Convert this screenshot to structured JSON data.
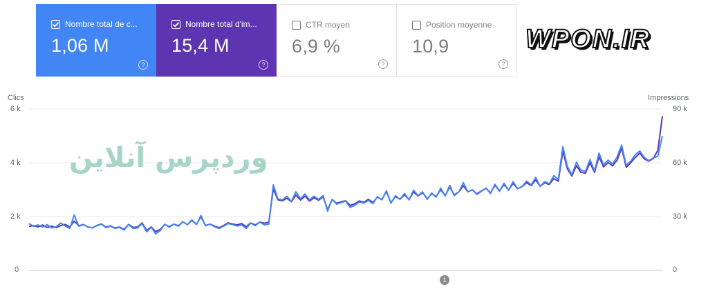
{
  "metrics": [
    {
      "label": "Nombre total de c...",
      "value": "1,06 M",
      "checked": true,
      "color": "#4285f4"
    },
    {
      "label": "Nombre total d'im...",
      "value": "15,4 M",
      "checked": true,
      "color": "#5e35b1"
    },
    {
      "label": "CTR moyen",
      "value": "6,9 %",
      "checked": false
    },
    {
      "label": "Position moyenne",
      "value": "10,9",
      "checked": false
    }
  ],
  "help_glyph": "?",
  "brand": "WPON.IR",
  "watermark": "وردپرس آنلاین",
  "annotation": "1",
  "chart_data": {
    "type": "line",
    "y_left_title": "Clics",
    "y_right_title": "Impressions",
    "y_left_ticks": [
      "0",
      "2 k",
      "4 k",
      "6 k"
    ],
    "y_right_ticks": [
      "0",
      "30 k",
      "60 k",
      "90 k"
    ],
    "y_left_range": [
      0,
      6000
    ],
    "y_right_range": [
      0,
      90000
    ],
    "grid": true,
    "legend": "none",
    "series": [
      {
        "name": "Nombre total de c...",
        "axis": "left",
        "color": "#4285f4",
        "values": [
          1740,
          1640,
          1690,
          1610,
          1700,
          1580,
          1620,
          1760,
          1650,
          1560,
          2060,
          1640,
          1700,
          1620,
          1580,
          1660,
          1720,
          1590,
          1640,
          1560,
          1600,
          1500,
          1700,
          1560,
          1580,
          1740,
          1430,
          1600,
          1360,
          1480,
          1720,
          1600,
          1720,
          1640,
          1810,
          1700,
          1880,
          1700,
          2040,
          1660,
          1720,
          1620,
          1560,
          1640,
          1740,
          1700,
          1650,
          1690,
          1560,
          1760,
          1660,
          1800,
          1690,
          1720,
          3180,
          2660,
          2620,
          2760,
          2560,
          2920,
          2660,
          2840,
          2620,
          2760,
          2640,
          2780,
          2200,
          2640,
          2460,
          2520,
          2580,
          2340,
          2420,
          2540,
          2500,
          2600,
          2480,
          2740,
          2620,
          2960,
          2500,
          2780,
          2640,
          2860,
          2620,
          2980,
          2780,
          2920,
          2640,
          2880,
          2720,
          3060,
          2760,
          3160,
          2780,
          2920,
          3260,
          2920,
          3000,
          2820,
          2940,
          3060,
          2860,
          3200,
          2940,
          3240,
          2980,
          3300,
          3040,
          3120,
          3320,
          3180,
          3460,
          3120,
          3300,
          3220,
          3520,
          3380,
          4600,
          3860,
          3560,
          4020,
          3720,
          3680,
          4120,
          3700,
          4360,
          3920,
          4100,
          3960,
          4220,
          4660,
          3900,
          4060,
          4300,
          4440,
          4200,
          4080,
          4180,
          4240,
          5000
        ]
      },
      {
        "name": "Nombre total d'im...",
        "axis": "right",
        "color": "#5e35b1",
        "values": [
          24500,
          25000,
          24200,
          25300,
          24000,
          24600,
          23800,
          25000,
          25600,
          24200,
          27500,
          24800,
          25600,
          24200,
          23800,
          25000,
          25900,
          24100,
          24800,
          23600,
          24200,
          22900,
          25600,
          24000,
          24200,
          26500,
          22300,
          24200,
          21600,
          22800,
          25600,
          24400,
          25800,
          24900,
          27000,
          25500,
          27900,
          25600,
          30000,
          25000,
          25800,
          24700,
          23800,
          25000,
          26500,
          25900,
          25400,
          26100,
          24300,
          26500,
          25300,
          27000,
          26300,
          26900,
          45500,
          39400,
          38800,
          40200,
          38300,
          42000,
          39200,
          41400,
          38600,
          40500,
          39100,
          41000,
          33800,
          39500,
          37400,
          38300,
          38800,
          36200,
          37100,
          38700,
          38000,
          39600,
          37800,
          40900,
          39500,
          44000,
          37700,
          41200,
          39600,
          42200,
          39400,
          43700,
          41500,
          43300,
          40000,
          42700,
          41200,
          45000,
          41700,
          46500,
          42100,
          43800,
          47200,
          43800,
          44900,
          42700,
          44300,
          45700,
          43200,
          47400,
          44300,
          47800,
          44800,
          48500,
          45600,
          46700,
          48900,
          47300,
          50400,
          46900,
          48800,
          47900,
          51200,
          49700,
          66500,
          56600,
          52600,
          58400,
          54700,
          54200,
          60000,
          54600,
          63300,
          57700,
          60100,
          58300,
          61500,
          68200,
          57500,
          60000,
          62900,
          65400,
          62200,
          60900,
          62400,
          67000,
          86000
        ]
      }
    ]
  }
}
